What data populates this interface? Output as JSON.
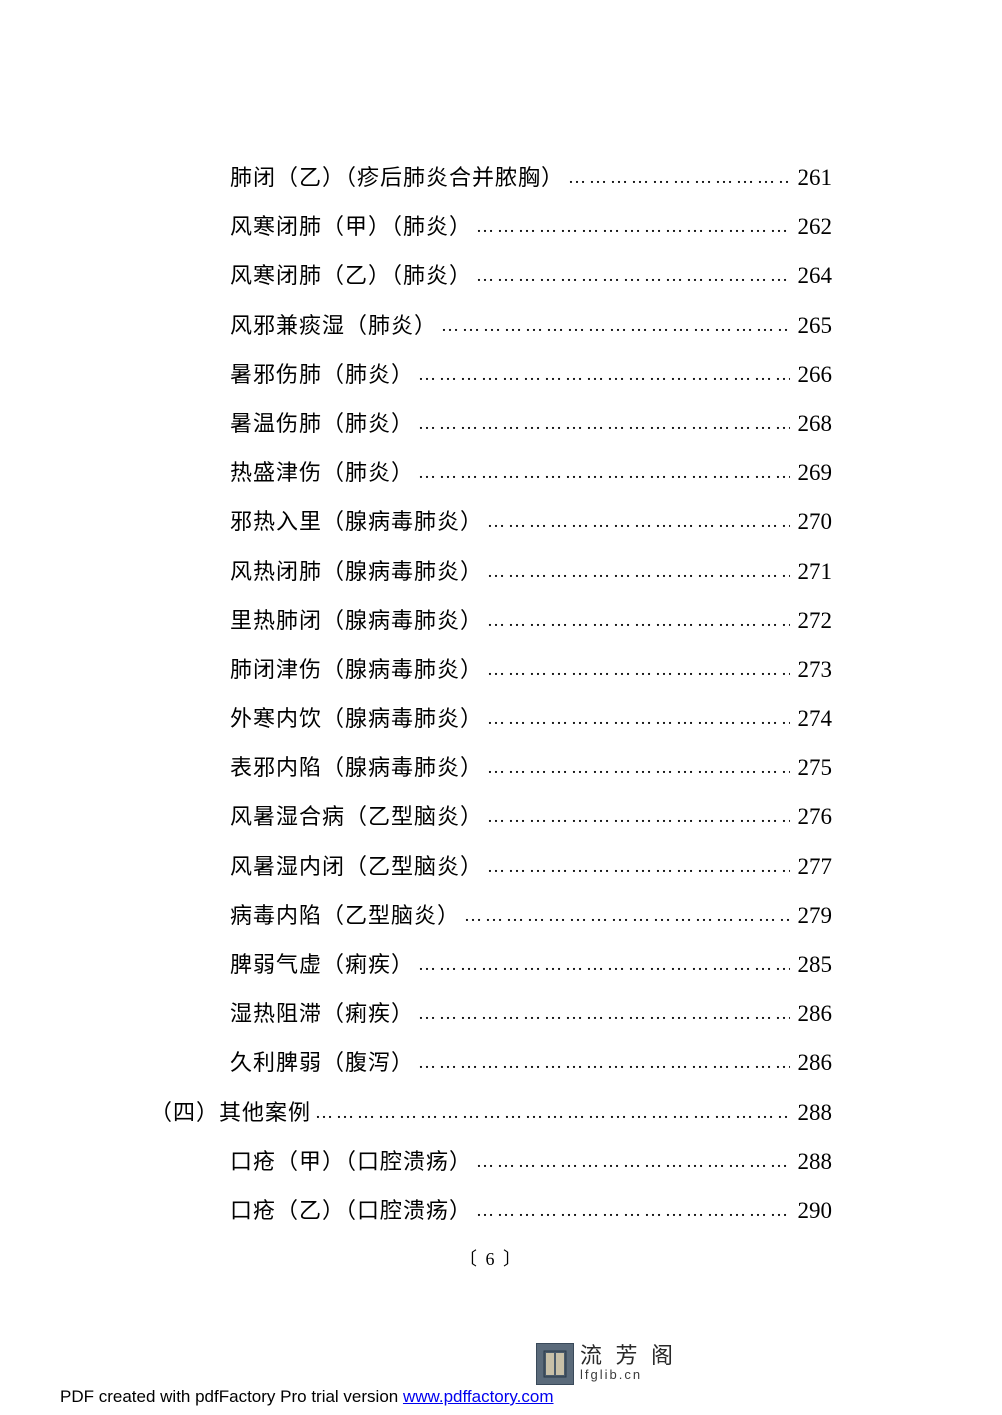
{
  "toc": {
    "entries": [
      {
        "indent": 1,
        "title": "肺闭（乙）（疹后肺炎合并脓胸）",
        "page": "261"
      },
      {
        "indent": 1,
        "title": "风寒闭肺（甲）（肺炎）",
        "page": "262"
      },
      {
        "indent": 1,
        "title": "风寒闭肺（乙）（肺炎）",
        "page": "264"
      },
      {
        "indent": 1,
        "title": "风邪兼痰湿（肺炎）",
        "page": "265"
      },
      {
        "indent": 1,
        "title": "暑邪伤肺（肺炎）",
        "page": "266"
      },
      {
        "indent": 1,
        "title": "暑温伤肺（肺炎）",
        "page": "268"
      },
      {
        "indent": 1,
        "title": "热盛津伤（肺炎）",
        "page": "269"
      },
      {
        "indent": 1,
        "title": "邪热入里（腺病毒肺炎）",
        "page": "270"
      },
      {
        "indent": 1,
        "title": "风热闭肺（腺病毒肺炎）",
        "page": "271"
      },
      {
        "indent": 1,
        "title": "里热肺闭（腺病毒肺炎）",
        "page": "272"
      },
      {
        "indent": 1,
        "title": "肺闭津伤（腺病毒肺炎）",
        "page": "273"
      },
      {
        "indent": 1,
        "title": "外寒内饮（腺病毒肺炎）",
        "page": "274"
      },
      {
        "indent": 1,
        "title": "表邪内陷（腺病毒肺炎）",
        "page": "275"
      },
      {
        "indent": 1,
        "title": "风暑湿合病（乙型脑炎）",
        "page": "276"
      },
      {
        "indent": 1,
        "title": "风暑湿内闭（乙型脑炎）",
        "page": "277"
      },
      {
        "indent": 1,
        "title": "病毒内陷（乙型脑炎）",
        "page": "279"
      },
      {
        "indent": 1,
        "title": "脾弱气虚（痢疾）",
        "page": "285"
      },
      {
        "indent": 1,
        "title": "湿热阻滞（痢疾）",
        "page": "286"
      },
      {
        "indent": 1,
        "title": "久利脾弱（腹泻）",
        "page": "286"
      },
      {
        "indent": 0,
        "title": "（四）其他案例",
        "page": "288"
      },
      {
        "indent": 1,
        "title": "口疮（甲）（口腔溃疡）",
        "page": "288"
      },
      {
        "indent": 1,
        "title": "口疮（乙）（口腔溃疡）",
        "page": "290"
      }
    ],
    "page_footer": "〔 6 〕",
    "dots_fill": "……………………………………………………………………"
  },
  "footer": {
    "logo_cn": "流 芳 阁",
    "logo_url": "lfglib.cn",
    "pdf_text": "PDF created with pdfFactory Pro trial version ",
    "pdf_link_text": "www.pdffactory.com"
  },
  "style": {
    "text_color": "#000000",
    "link_color": "#0000ee",
    "background_color": "#ffffff",
    "font_size_toc": 22,
    "font_size_page": 23
  }
}
